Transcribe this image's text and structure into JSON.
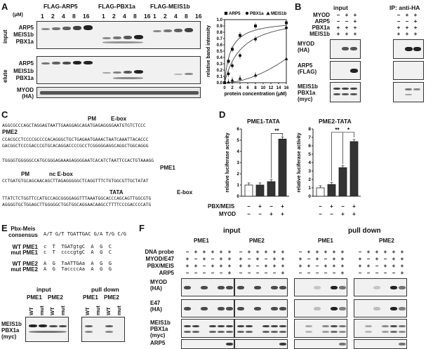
{
  "panels": {
    "A": "A",
    "B": "B",
    "C": "C",
    "D": "D",
    "E": "E",
    "F": "F"
  },
  "panelA": {
    "unit": "(μM)",
    "groups": [
      "FLAG-ARP5",
      "FLAG-PBX1a",
      "FLAG-MEIS1b"
    ],
    "concentrations": [
      "1",
      "2",
      "4",
      "8",
      "16"
    ],
    "section_input": "input",
    "section_elute": "elute",
    "rows_input": [
      "ARP5",
      "MEIS1b",
      "PBX1a"
    ],
    "rows_elute": [
      "ARP5",
      "MEIS1b",
      "PBX1a"
    ],
    "myod_label": "MYOD",
    "myod_sub": "(HA)"
  },
  "chart_data": {
    "type": "scatter",
    "xlabel": "protein concentration (μM)",
    "ylabel": "relative band intensity",
    "xlim": [
      0,
      16
    ],
    "ylim": [
      0,
      1.0
    ],
    "xticks": [
      0,
      2,
      4,
      6,
      8,
      10,
      12,
      14,
      16
    ],
    "yticks": [
      0,
      0.1,
      0.2,
      0.3,
      0.4,
      0.5,
      0.6,
      0.7,
      0.8,
      0.9,
      1.0
    ],
    "legend_position": "top",
    "series": [
      {
        "name": "ARP5",
        "marker": "square",
        "x": [
          0,
          1,
          2,
          4,
          8,
          16
        ],
        "y": [
          0,
          0.34,
          0.53,
          0.75,
          0.9,
          0.95
        ]
      },
      {
        "name": "PBX1a",
        "marker": "circle",
        "x": [
          0,
          1,
          2,
          4,
          8,
          16
        ],
        "y": [
          0,
          0.14,
          0.27,
          0.43,
          0.69,
          0.87
        ]
      },
      {
        "name": "MEIS1b",
        "marker": "triangle",
        "x": [
          0,
          1,
          2,
          4,
          8,
          16
        ],
        "y": [
          0,
          0.01,
          0.04,
          0.07,
          0.12,
          0.38
        ]
      }
    ]
  },
  "panelB": {
    "input_title": "input",
    "ip_title": "IP: anti-HA",
    "conditions": [
      {
        "name": "MYOD",
        "values": [
          "−",
          "+",
          "+"
        ]
      },
      {
        "name": "ARP5",
        "values": [
          "−",
          "−",
          "+"
        ]
      },
      {
        "name": "PBX1a",
        "values": [
          "+",
          "+",
          "+"
        ]
      },
      {
        "name": "MEIS1b",
        "values": [
          "+",
          "+",
          "+"
        ]
      }
    ],
    "blots": [
      {
        "label": "MYOD",
        "sub": "(HA)"
      },
      {
        "label": "ARP5",
        "sub": "(FLAG)"
      },
      {
        "label": "MEIS1b\nPBX1a",
        "sub": "(myc)"
      }
    ]
  },
  "panelC": {
    "lines": [
      "AGGCGCCCAGCTAGGAGTAATTGAAGGAGCAGATGAGAGGGGAATGTGTCTCCC",
      "CCACGCCTCCCCGCCCCACAGGGCTGCTGAGAATGAAACTAATCAAATTACACCC",
      "GACGGCTCCCGACCCGTGCACAGGACCCCGCCTCGGGGGAGGCAGGCTGGCAGGG",
      "TGGGGTGGGGGCCATGCGGGAGAAAGAGGGGAATCACATCTAATTCCACTGTAAAGG",
      "CCTGATGTGCAGCAACAGCTTAGAGGGGGCTCAGGTTTCTGTGGCGTTGCTATAT",
      "TTATCTCTGGTTCCATGCCAGCGGGGAGGTTTAAATGGCACCCAGCAGTTGGCGTG",
      "AGGGGTGCTGGAGCTTGGGGGCTGGTGGCAGGAACAAGCCTTTTCCCGACCCCATG"
    ],
    "pm_top": "PM",
    "ebox_top": "E-box",
    "pme2": "PME2",
    "pme1": "PME1",
    "pm_mid": "PM",
    "ncebox": "nc E-box",
    "tata": "TATA",
    "ebox_bot": "E-box"
  },
  "panelD": {
    "titles": [
      "PME1-TATA",
      "PME2-TATA"
    ],
    "ylabel": "relative luciferase activity",
    "row1_label": "PBX/MEIS",
    "row2_label": "MYOD",
    "row1_signs": [
      "−",
      "+",
      "−",
      "+"
    ],
    "row2_signs": [
      "−",
      "−",
      "+",
      "+"
    ],
    "chart1": {
      "values": [
        1.0,
        1.0,
        1.3,
        5.1
      ],
      "yticks": [
        0,
        1,
        2,
        3,
        4,
        5,
        6
      ],
      "sig": "**"
    },
    "chart2": {
      "values": [
        1.0,
        1.4,
        3.4,
        6.5
      ],
      "yticks": [
        0,
        1,
        2,
        3,
        4,
        5,
        6,
        7,
        8
      ],
      "sig1": "**",
      "sig2": "*"
    }
  },
  "panelE": {
    "consensus_label": "Pbx-Meis\nconsensus",
    "consensus": "A/T G/T TGATTGAC G/A T/G C/G",
    "rows": [
      {
        "label": "WT PME1",
        "seq": "c  T  TGATgtgC  A  G  C"
      },
      {
        "label": "mut PME1",
        "seq": "c  T  ccccgtgC  A  G  C"
      },
      {
        "label": "WT PME2",
        "seq": "A  G  TaATTGAa  A  G  G"
      },
      {
        "label": "mut PME2",
        "seq": "A  G  TaccccAa  A  G  G"
      }
    ],
    "input_title": "input",
    "pull_title": "pull down",
    "pme1": "PME1",
    "pme2": "PME2",
    "wt": "WT",
    "mut": "mut",
    "blot_label": "MEIS1b\nPBX1a\n(myc)"
  },
  "panelF": {
    "input_title": "input",
    "pull_title": "pull down",
    "pme1": "PME1",
    "pme2": "PME2",
    "conditions": [
      {
        "name": "DNA probe",
        "values": [
          "−",
          "+",
          "+",
          "+",
          "+",
          "+"
        ]
      },
      {
        "name": "MYOD/E47",
        "values": [
          "+",
          "−",
          "+",
          "−",
          "+",
          "+"
        ]
      },
      {
        "name": "PBX/MEIS",
        "values": [
          "+",
          "+",
          "−",
          "+",
          "+",
          "+"
        ]
      },
      {
        "name": "ARP5",
        "values": [
          "−",
          "−",
          "−",
          "−",
          "−",
          "+"
        ]
      }
    ],
    "blots": [
      {
        "label": "MYOD",
        "sub": "(HA)"
      },
      {
        "label": "E47",
        "sub": "(HA)"
      },
      {
        "label": "MEIS1b\nPBX1a",
        "sub": "(myc)"
      },
      {
        "label": "ARP5",
        "sub": "(FLAG)"
      }
    ]
  }
}
